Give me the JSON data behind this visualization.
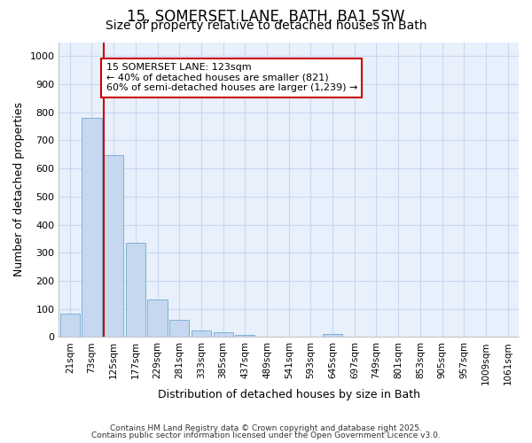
{
  "title_line1": "15, SOMERSET LANE, BATH, BA1 5SW",
  "title_line2": "Size of property relative to detached houses in Bath",
  "xlabel": "Distribution of detached houses by size in Bath",
  "ylabel": "Number of detached properties",
  "bar_labels": [
    "21sqm",
    "73sqm",
    "125sqm",
    "177sqm",
    "229sqm",
    "281sqm",
    "333sqm",
    "385sqm",
    "437sqm",
    "489sqm",
    "541sqm",
    "593sqm",
    "645sqm",
    "697sqm",
    "749sqm",
    "801sqm",
    "853sqm",
    "905sqm",
    "957sqm",
    "1009sqm",
    "1061sqm"
  ],
  "bar_values": [
    85,
    780,
    648,
    335,
    135,
    60,
    22,
    17,
    8,
    0,
    0,
    0,
    10,
    0,
    0,
    0,
    0,
    0,
    0,
    0,
    0
  ],
  "bar_color": "#c5d8f0",
  "bar_edgecolor": "#7fafd4",
  "annotation_text": "15 SOMERSET LANE: 123sqm\n← 40% of detached houses are smaller (821)\n60% of semi-detached houses are larger (1,239) →",
  "annotation_box_color": "#ffffff",
  "annotation_box_edgecolor": "#cc0000",
  "redline_color": "#cc0000",
  "redline_bin_index": 2,
  "ylim": [
    0,
    1050
  ],
  "yticks": [
    0,
    100,
    200,
    300,
    400,
    500,
    600,
    700,
    800,
    900,
    1000
  ],
  "bg_color": "#ffffff",
  "plot_bg_color": "#e8f0fb",
  "grid_color": "#c8d8f0",
  "footer_line1": "Contains HM Land Registry data © Crown copyright and database right 2025.",
  "footer_line2": "Contains public sector information licensed under the Open Government Licence v3.0."
}
